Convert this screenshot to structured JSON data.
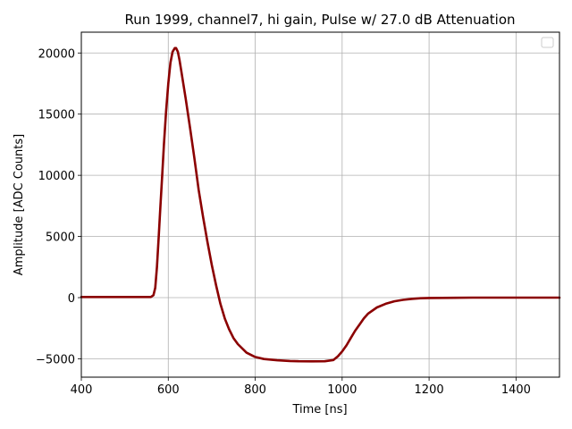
{
  "chart_data": {
    "type": "line",
    "title": "Run 1999, channel7, hi gain, Pulse w/ 27.0 dB Attenuation",
    "xlabel": "Time [ns]",
    "ylabel": "Amplitude [ADC Counts]",
    "xlim": [
      400,
      1500
    ],
    "ylim": [
      -6500,
      21700
    ],
    "xticks": [
      400,
      600,
      800,
      1000,
      1200,
      1400
    ],
    "yticks": [
      -5000,
      0,
      5000,
      10000,
      15000,
      20000
    ],
    "xtick_labels": [
      "400",
      "600",
      "800",
      "1000",
      "1200",
      "1400"
    ],
    "ytick_labels": [
      "−5000",
      "0",
      "5000",
      "10000",
      "15000",
      "20000"
    ],
    "grid": true,
    "legend": "top-right (empty)",
    "colors": {
      "series": "#8b0000",
      "grid": "#b0b0b0",
      "axes": "#000000"
    },
    "series": [
      {
        "x": [
          400,
          500,
          560,
          566,
          570,
          574,
          578,
          582,
          586,
          590,
          595,
          600,
          605,
          610,
          615,
          618,
          622,
          626,
          630,
          640,
          650,
          660,
          670,
          680,
          690,
          700,
          710,
          720,
          730,
          740,
          750,
          760,
          780,
          800,
          820,
          850,
          880,
          900,
          930,
          960,
          980,
          990,
          1000,
          1010,
          1020,
          1030,
          1040,
          1050,
          1060,
          1080,
          1100,
          1120,
          1140,
          1160,
          1180,
          1200,
          1300,
          1400,
          1500
        ],
        "y": [
          50,
          50,
          50,
          200,
          800,
          2500,
          5000,
          7500,
          10000,
          12500,
          15200,
          17500,
          19200,
          20100,
          20400,
          20400,
          20100,
          19400,
          18500,
          16300,
          13900,
          11400,
          8800,
          6600,
          4600,
          2700,
          1000,
          -500,
          -1700,
          -2600,
          -3300,
          -3800,
          -4500,
          -4850,
          -5020,
          -5120,
          -5180,
          -5200,
          -5210,
          -5200,
          -5100,
          -4800,
          -4400,
          -3900,
          -3300,
          -2700,
          -2200,
          -1700,
          -1300,
          -800,
          -500,
          -300,
          -180,
          -100,
          -50,
          -30,
          0,
          0,
          0
        ]
      }
    ]
  }
}
